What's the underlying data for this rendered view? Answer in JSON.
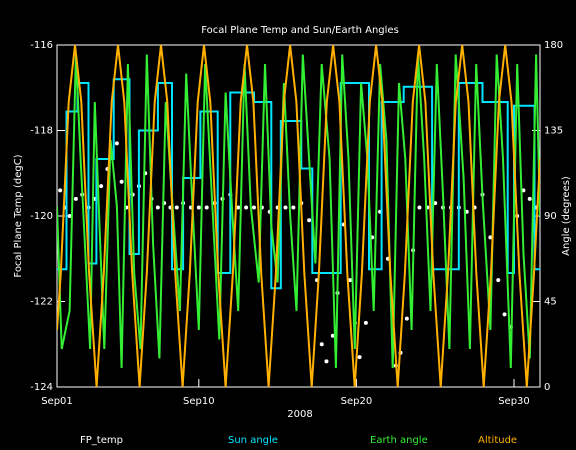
{
  "chart_data": {
    "type": "line",
    "title": "Focal Plane Temp and Sun/Earth Angles",
    "xlabel": "2008",
    "ylabel": "Focal Plane Temp (degC)",
    "y2label": "Angle (degrees)",
    "xlim": [
      1,
      31.65
    ],
    "xticks": [
      {
        "value": 1,
        "label": "Sep01"
      },
      {
        "value": 10,
        "label": "Sep10"
      },
      {
        "value": 20,
        "label": "Sep20"
      },
      {
        "value": 30,
        "label": "Sep30"
      }
    ],
    "ylim": [
      -124,
      -116
    ],
    "yticks": [
      -124,
      -122,
      -120,
      -118,
      -116
    ],
    "y2lim": [
      0,
      180
    ],
    "y2ticks": [
      0,
      45,
      90,
      135,
      180
    ],
    "legend": "bottom",
    "series": [
      {
        "name": "FP_temp",
        "color": "#ffffff",
        "mode": "markers",
        "x": [
          1.2,
          1.5,
          1.8,
          2.2,
          2.6,
          3.0,
          3.4,
          3.8,
          4.2,
          4.5,
          4.8,
          5.1,
          5.4,
          5.8,
          6.2,
          6.6,
          7.0,
          7.4,
          7.8,
          8.2,
          8.6,
          9.0,
          9.5,
          10.0,
          10.5,
          11.0,
          11.5,
          12.0,
          12.5,
          13.0,
          13.5,
          14.0,
          14.5,
          15.0,
          15.5,
          16.0,
          16.5,
          17.0,
          17.5,
          17.8,
          18.1,
          18.5,
          18.8,
          19.2,
          19.6,
          19.9,
          20.2,
          20.6,
          21.0,
          21.5,
          22.0,
          22.5,
          22.8,
          23.2,
          23.6,
          24.0,
          24.5,
          25.0,
          25.5,
          26.0,
          26.5,
          27.0,
          27.5,
          28.0,
          28.5,
          29.0,
          29.4,
          29.8,
          30.2,
          30.6,
          31.0,
          31.4
        ],
        "values": [
          -119.4,
          -119.8,
          -120.0,
          -119.6,
          -119.5,
          -119.8,
          -119.6,
          -119.3,
          -118.9,
          -118.6,
          -118.3,
          -119.2,
          -119.8,
          -119.5,
          -119.3,
          -119.0,
          -119.6,
          -119.8,
          -119.7,
          -119.8,
          -119.8,
          -119.7,
          -119.8,
          -119.8,
          -119.8,
          -119.7,
          -119.6,
          -119.5,
          -119.8,
          -119.8,
          -119.8,
          -119.8,
          -119.9,
          -119.8,
          -119.8,
          -119.8,
          -119.7,
          -120.1,
          -121.5,
          -123.0,
          -123.4,
          -122.8,
          -121.8,
          -120.2,
          -121.5,
          -122.5,
          -123.3,
          -122.5,
          -120.5,
          -119.9,
          -121.0,
          -123.5,
          -123.2,
          -122.4,
          -120.8,
          -119.8,
          -119.8,
          -119.7,
          -119.8,
          -119.8,
          -119.8,
          -119.9,
          -119.8,
          -119.5,
          -120.5,
          -121.5,
          -122.3,
          -122.6,
          -120.0,
          -119.4,
          -119.6,
          -119.8
        ]
      },
      {
        "name": "Sun angle",
        "color": "#00e5ff",
        "axis": "y2",
        "x": [
          1.0,
          1.6,
          1.6,
          2.3,
          2.3,
          3.0,
          3.0,
          3.5,
          3.5,
          4.6,
          4.6,
          5.6,
          5.6,
          6.2,
          6.2,
          7.4,
          7.4,
          8.3,
          8.3,
          9.0,
          9.0,
          10.1,
          10.1,
          11.2,
          11.2,
          12.0,
          12.0,
          13.5,
          13.5,
          14.6,
          14.6,
          15.2,
          15.2,
          16.5,
          16.5,
          17.2,
          17.2,
          19.0,
          19.0,
          20.8,
          20.8,
          21.6,
          21.6,
          23.0,
          23.0,
          24.8,
          24.8,
          26.5,
          26.5,
          28.0,
          28.0,
          29.6,
          29.6,
          30.0,
          30.0,
          31.3,
          31.3,
          31.65
        ],
        "values": [
          62,
          62,
          145,
          145,
          160,
          160,
          65,
          65,
          120,
          120,
          162,
          162,
          70,
          70,
          135,
          135,
          160,
          160,
          62,
          62,
          110,
          110,
          145,
          145,
          60,
          60,
          155,
          155,
          150,
          150,
          52,
          52,
          140,
          140,
          115,
          115,
          60,
          60,
          160,
          160,
          62,
          62,
          150,
          150,
          158,
          158,
          62,
          62,
          160,
          160,
          150,
          150,
          60,
          60,
          148,
          148,
          62,
          62
        ]
      },
      {
        "name": "Earth angle",
        "color": "#33ee33",
        "axis": "y2",
        "x": [
          1.0,
          1.3,
          1.8,
          2.2,
          2.5,
          2.8,
          3.1,
          3.4,
          3.7,
          4.0,
          4.4,
          4.8,
          5.1,
          5.5,
          5.9,
          6.3,
          6.7,
          7.1,
          7.5,
          7.9,
          8.3,
          8.8,
          9.2,
          9.6,
          10.0,
          10.4,
          10.8,
          11.3,
          11.7,
          12.1,
          12.5,
          12.9,
          13.3,
          13.8,
          14.2,
          14.6,
          15.0,
          15.4,
          15.8,
          16.2,
          16.6,
          17.0,
          17.4,
          17.8,
          18.3,
          18.7,
          19.1,
          19.5,
          19.9,
          20.3,
          20.7,
          21.1,
          21.5,
          21.9,
          22.3,
          22.7,
          23.1,
          23.5,
          23.9,
          24.3,
          24.7,
          25.1,
          25.5,
          25.9,
          26.3,
          26.8,
          27.2,
          27.6,
          28.0,
          28.5,
          28.9,
          29.3,
          29.8,
          30.2,
          30.6,
          31.0,
          31.4,
          31.65
        ],
        "values": [
          95,
          20,
          40,
          175,
          120,
          70,
          20,
          150,
          85,
          20,
          130,
          95,
          10,
          170,
          60,
          20,
          175,
          75,
          15,
          150,
          100,
          40,
          165,
          95,
          30,
          170,
          105,
          25,
          155,
          95,
          40,
          170,
          95,
          55,
          170,
          85,
          55,
          160,
          90,
          40,
          175,
          120,
          65,
          170,
          120,
          10,
          175,
          120,
          20,
          160,
          120,
          40,
          170,
          130,
          10,
          160,
          120,
          30,
          175,
          120,
          40,
          170,
          100,
          20,
          175,
          110,
          20,
          170,
          100,
          30,
          175,
          120,
          10,
          170,
          70,
          15,
          175,
          90
        ]
      },
      {
        "name": "Altitude",
        "color": "#ffb000",
        "axis": "y2",
        "x": [
          1.0,
          1.24,
          1.74,
          2.14,
          2.54,
          3.04,
          3.51,
          3.97,
          4.47,
          4.87,
          5.27,
          5.77,
          6.24,
          6.7,
          7.2,
          7.6,
          8.0,
          8.5,
          8.97,
          9.43,
          9.93,
          10.33,
          10.73,
          11.23,
          11.7,
          12.16,
          12.66,
          13.06,
          13.46,
          13.96,
          14.43,
          14.89,
          15.39,
          15.79,
          16.19,
          16.69,
          17.16,
          17.62,
          18.12,
          18.52,
          18.92,
          19.42,
          19.89,
          20.35,
          20.85,
          21.25,
          21.65,
          22.15,
          22.62,
          23.08,
          23.58,
          23.98,
          24.38,
          24.88,
          25.35,
          25.81,
          26.31,
          26.71,
          27.11,
          27.61,
          28.08,
          28.54,
          29.04,
          29.44,
          29.84,
          30.34,
          30.81,
          31.27,
          31.65
        ],
        "values": [
          30,
          60,
          150,
          180,
          150,
          60,
          0,
          60,
          150,
          180,
          150,
          60,
          0,
          60,
          150,
          180,
          150,
          60,
          0,
          60,
          150,
          180,
          150,
          60,
          0,
          60,
          150,
          180,
          150,
          60,
          0,
          60,
          150,
          180,
          150,
          60,
          0,
          60,
          150,
          180,
          150,
          60,
          0,
          60,
          150,
          180,
          150,
          60,
          0,
          60,
          150,
          180,
          150,
          60,
          0,
          60,
          150,
          180,
          150,
          60,
          0,
          60,
          150,
          180,
          150,
          60,
          0,
          60,
          120
        ]
      }
    ]
  }
}
